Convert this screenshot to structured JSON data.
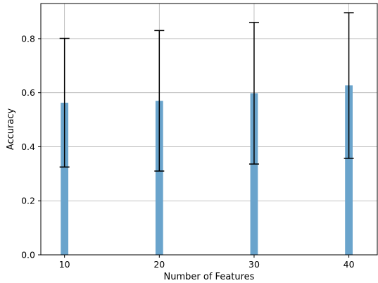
{
  "chart_data": {
    "type": "bar",
    "title": "",
    "xlabel": "Number of Features",
    "ylabel": "Accuracy",
    "categories": [
      10,
      20,
      30,
      40
    ],
    "values": [
      0.563,
      0.57,
      0.598,
      0.627
    ],
    "error_lower": [
      0.325,
      0.31,
      0.336,
      0.357
    ],
    "error_upper": [
      0.801,
      0.83,
      0.86,
      0.896
    ],
    "xlim": [
      7.5,
      43
    ],
    "ylim": [
      0,
      0.93
    ],
    "xticks": [
      10,
      20,
      30,
      40
    ],
    "yticks": [
      0.0,
      0.2,
      0.4,
      0.6,
      0.8
    ],
    "ytick_labels": [
      "0.0",
      "0.2",
      "0.4",
      "0.6",
      "0.8"
    ],
    "bar_width": 0.8,
    "grid": true,
    "bar_color": "#6aa4cc",
    "errorbar_color": "#000000"
  }
}
